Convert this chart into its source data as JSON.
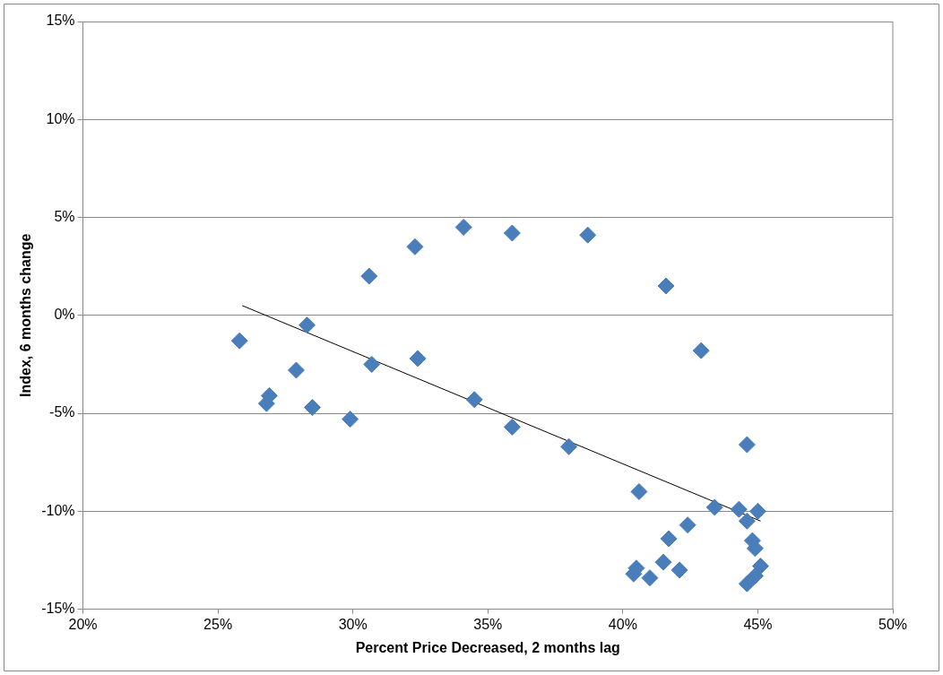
{
  "chart_data": {
    "type": "scatter",
    "xlabel": "Percent Price Decreased, 2 months lag",
    "ylabel": "Index, 6 months change",
    "xlim": [
      20,
      50
    ],
    "xticks": [
      {
        "value": 20,
        "label": "20%"
      },
      {
        "value": 25,
        "label": "25%"
      },
      {
        "value": 30,
        "label": "30%"
      },
      {
        "value": 35,
        "label": "35%"
      },
      {
        "value": 40,
        "label": "40%"
      },
      {
        "value": 45,
        "label": "45%"
      },
      {
        "value": 50,
        "label": "50%"
      }
    ],
    "ylim": [
      -15,
      15
    ],
    "yticks": [
      {
        "value": -15,
        "label": "-15%"
      },
      {
        "value": -10,
        "label": "-10%"
      },
      {
        "value": -5,
        "label": "-5%"
      },
      {
        "value": 0,
        "label": "0%"
      },
      {
        "value": 5,
        "label": "5%"
      },
      {
        "value": 10,
        "label": "10%"
      },
      {
        "value": 15,
        "label": "15%"
      }
    ],
    "grid": "y",
    "marker": "diamond",
    "legend": false,
    "series": [
      {
        "type": "scatter",
        "color": "#4a7ebb",
        "x": [
          25.8,
          26.9,
          26.8,
          27.9,
          28.3,
          28.5,
          29.9,
          30.6,
          30.7,
          32.3,
          32.4,
          34.1,
          34.5,
          35.9,
          35.9,
          38.0,
          38.7,
          40.6,
          41.6,
          42.9,
          44.6,
          40.4,
          40.5,
          41.0,
          41.5,
          41.7,
          42.1,
          42.4,
          43.4,
          44.3,
          44.6,
          45.0,
          44.8,
          44.9,
          45.1,
          44.9,
          44.6
        ],
        "values": [
          -1.3,
          -4.1,
          -4.5,
          -2.8,
          -0.5,
          -4.7,
          -5.3,
          2.0,
          -2.5,
          3.5,
          -2.2,
          4.5,
          -4.3,
          4.2,
          -5.7,
          -6.7,
          4.1,
          -9.0,
          1.5,
          -1.8,
          -6.6,
          -13.2,
          -12.9,
          -13.4,
          -12.6,
          -11.4,
          -13.0,
          -10.7,
          -9.8,
          -9.9,
          -10.5,
          -10.0,
          -11.5,
          -11.9,
          -12.8,
          -13.3,
          -13.7
        ]
      },
      {
        "type": "line",
        "color": "#000000",
        "x": [
          25.9,
          45.1
        ],
        "values": [
          0.5,
          -10.5
        ],
        "marker": "none"
      }
    ]
  }
}
